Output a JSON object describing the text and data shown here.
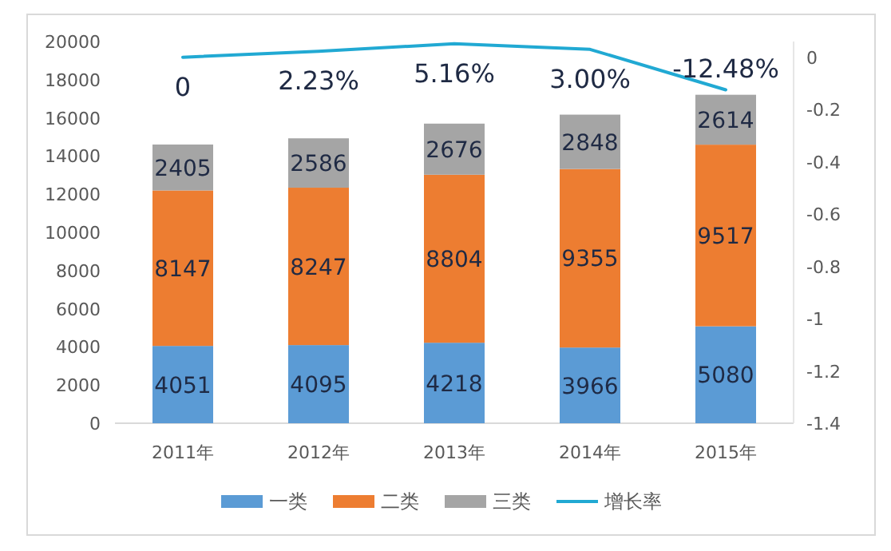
{
  "chart_data": {
    "type": "bar",
    "stacked": true,
    "categories": [
      "2011年",
      "2012年",
      "2013年",
      "2014年",
      "2015年"
    ],
    "series": [
      {
        "name": "一类",
        "color": "#5b9bd5",
        "values": [
          4051,
          4095,
          4218,
          3966,
          5080
        ]
      },
      {
        "name": "二类",
        "color": "#ed7d31",
        "values": [
          8147,
          8247,
          8804,
          9355,
          9517
        ]
      },
      {
        "name": "三类",
        "color": "#a5a5a5",
        "values": [
          2405,
          2586,
          2676,
          2848,
          2614
        ]
      },
      {
        "name": "增长率",
        "type": "line",
        "axis": "y2",
        "color": "#21a9d3",
        "values": [
          0,
          0.0223,
          0.0516,
          0.03,
          -0.1248
        ],
        "value_labels": [
          "0",
          "2.23%",
          "5.16%",
          "3.00%",
          "-12.48%"
        ]
      }
    ],
    "ylim": [
      0,
      20000
    ],
    "yticks": [
      0,
      2000,
      4000,
      6000,
      8000,
      10000,
      12000,
      14000,
      16000,
      18000,
      20000
    ],
    "y2lim": [
      -1.4,
      0.06
    ],
    "y2ticks": [
      0,
      -0.2,
      -0.4,
      -0.6,
      -0.8,
      -1,
      -1.2,
      -1.4
    ],
    "data_labels": true,
    "legend": "bottom",
    "grid": false
  }
}
